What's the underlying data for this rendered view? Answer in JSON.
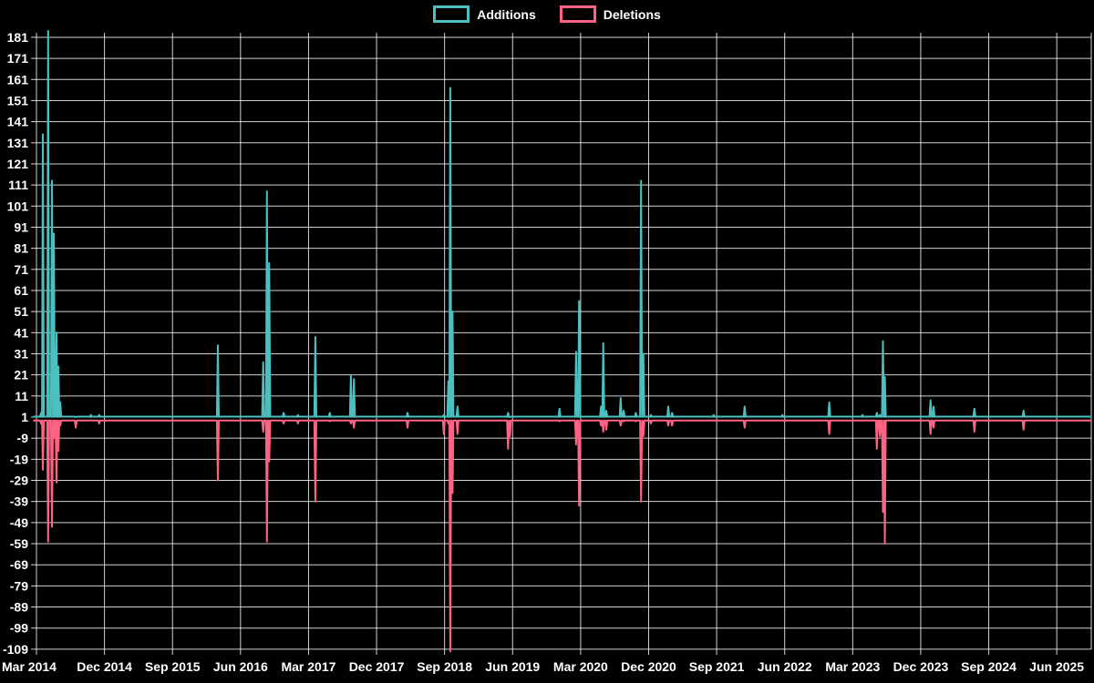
{
  "legend": {
    "additions_label": "Additions",
    "deletions_label": "Deletions"
  },
  "colors": {
    "additions": "#4bc0c0",
    "deletions": "#ff6384",
    "grid": "#ffffff",
    "text": "#ffffff",
    "background": "#000000"
  },
  "chart_data": {
    "type": "line",
    "title": "",
    "xlabel": "",
    "ylabel": "",
    "x_range": "Mar 2014 - Jun 2025",
    "ylim": [
      -109,
      181
    ],
    "grid": true,
    "legend_position": "top",
    "x_tick_labels": [
      "Mar 2014",
      "Dec 2014",
      "Sep 2015",
      "Jun 2016",
      "Mar 2017",
      "Dec 2017",
      "Sep 2018",
      "Jun 2019",
      "Mar 2020",
      "Dec 2020",
      "Sep 2021",
      "Jun 2022",
      "Mar 2023",
      "Dec 2023",
      "Sep 2024",
      "Jun 2025"
    ],
    "y_ticks": [
      181,
      171,
      161,
      151,
      141,
      131,
      121,
      111,
      101,
      91,
      81,
      71,
      61,
      51,
      41,
      31,
      21,
      11,
      1,
      -9,
      -19,
      -29,
      -39,
      -49,
      -59,
      -69,
      -79,
      -89,
      -99,
      -109
    ],
    "baseline_value": 0,
    "series": [
      {
        "name": "Additions",
        "color": "#4bc0c0"
      },
      {
        "name": "Deletions",
        "color": "#ff6384"
      }
    ],
    "spikes": [
      {
        "m": 0.6,
        "date": "2014-03",
        "additions": 3,
        "deletions": -2
      },
      {
        "m": 0.85,
        "date": "2014-04",
        "additions": 135,
        "deletions": -24
      },
      {
        "m": 1.55,
        "date": "2014-04",
        "additions": 184,
        "deletions": -58
      },
      {
        "m": 2.05,
        "date": "2014-05",
        "additions": 113,
        "deletions": -51
      },
      {
        "m": 2.3,
        "date": "2014-05",
        "additions": 88,
        "deletions": -9
      },
      {
        "m": 2.65,
        "date": "2014-05",
        "additions": 41,
        "deletions": -30
      },
      {
        "m": 2.9,
        "date": "2014-06",
        "additions": 25,
        "deletions": -15
      },
      {
        "m": 3.15,
        "date": "2014-06",
        "additions": 8,
        "deletions": -3
      },
      {
        "m": 5.2,
        "date": "2014-08",
        "additions": 1,
        "deletions": -4
      },
      {
        "m": 7.2,
        "date": "2014-10",
        "additions": 2,
        "deletions": 0
      },
      {
        "m": 8.3,
        "date": "2014-11",
        "additions": 2,
        "deletions": -2
      },
      {
        "m": 24.0,
        "date": "2016-03",
        "additions": 35,
        "deletions": -29
      },
      {
        "m": 30.0,
        "date": "2016-09",
        "additions": 27,
        "deletions": -6
      },
      {
        "m": 30.5,
        "date": "2016-09",
        "additions": 108,
        "deletions": -58
      },
      {
        "m": 30.8,
        "date": "2016-10",
        "additions": 74,
        "deletions": -20
      },
      {
        "m": 32.7,
        "date": "2016-11",
        "additions": 3,
        "deletions": -2
      },
      {
        "m": 34.6,
        "date": "2017-01",
        "additions": 2,
        "deletions": -2
      },
      {
        "m": 36.9,
        "date": "2017-04",
        "additions": 39,
        "deletions": -39
      },
      {
        "m": 38.8,
        "date": "2017-05",
        "additions": 3,
        "deletions": -1
      },
      {
        "m": 41.6,
        "date": "2017-08",
        "additions": 21,
        "deletions": -2
      },
      {
        "m": 42.0,
        "date": "2017-09",
        "additions": 19,
        "deletions": -4
      },
      {
        "m": 49.1,
        "date": "2018-04",
        "additions": 3,
        "deletions": -4
      },
      {
        "m": 53.9,
        "date": "2018-08",
        "additions": 2,
        "deletions": -7
      },
      {
        "m": 54.5,
        "date": "2018-09",
        "additions": 18,
        "deletions": -2
      },
      {
        "m": 54.75,
        "date": "2018-09",
        "additions": 157,
        "deletions": -110
      },
      {
        "m": 55.05,
        "date": "2018-10",
        "additions": 51,
        "deletions": -35
      },
      {
        "m": 55.7,
        "date": "2018-10",
        "additions": 6,
        "deletions": -7
      },
      {
        "m": 62.4,
        "date": "2019-05",
        "additions": 3,
        "deletions": -14
      },
      {
        "m": 62.65,
        "date": "2019-05",
        "additions": 1,
        "deletions": -8
      },
      {
        "m": 69.2,
        "date": "2019-12",
        "additions": 5,
        "deletions": -1
      },
      {
        "m": 71.4,
        "date": "2020-02",
        "additions": 32,
        "deletions": -12
      },
      {
        "m": 71.8,
        "date": "2020-02",
        "additions": 56,
        "deletions": -41
      },
      {
        "m": 74.7,
        "date": "2020-05",
        "additions": 6,
        "deletions": -3
      },
      {
        "m": 75.0,
        "date": "2020-06",
        "additions": 36,
        "deletions": -6
      },
      {
        "m": 75.4,
        "date": "2020-06",
        "additions": 4,
        "deletions": -5
      },
      {
        "m": 77.3,
        "date": "2020-08",
        "additions": 10,
        "deletions": -3
      },
      {
        "m": 77.7,
        "date": "2020-08",
        "additions": 4,
        "deletions": -1
      },
      {
        "m": 79.3,
        "date": "2020-10",
        "additions": 3,
        "deletions": -1
      },
      {
        "m": 80.0,
        "date": "2020-11",
        "additions": 113,
        "deletions": -39
      },
      {
        "m": 80.3,
        "date": "2020-11",
        "additions": 31,
        "deletions": -8
      },
      {
        "m": 81.3,
        "date": "2020-12",
        "additions": 2,
        "deletions": -2
      },
      {
        "m": 83.6,
        "date": "2021-02",
        "additions": 6,
        "deletions": -3
      },
      {
        "m": 84.1,
        "date": "2021-03",
        "additions": 3,
        "deletions": -3
      },
      {
        "m": 89.6,
        "date": "2021-08",
        "additions": 2,
        "deletions": 0
      },
      {
        "m": 93.7,
        "date": "2021-12",
        "additions": 6,
        "deletions": -4
      },
      {
        "m": 98.7,
        "date": "2022-05",
        "additions": 2,
        "deletions": 0
      },
      {
        "m": 104.9,
        "date": "2022-11",
        "additions": 8,
        "deletions": -7
      },
      {
        "m": 109.3,
        "date": "2023-04",
        "additions": 2,
        "deletions": 0
      },
      {
        "m": 111.2,
        "date": "2023-06",
        "additions": 3,
        "deletions": -14
      },
      {
        "m": 111.6,
        "date": "2023-06",
        "additions": 2,
        "deletions": -8
      },
      {
        "m": 112.0,
        "date": "2023-07",
        "additions": 37,
        "deletions": -44
      },
      {
        "m": 112.25,
        "date": "2023-07",
        "additions": 20,
        "deletions": -59
      },
      {
        "m": 118.3,
        "date": "2024-01",
        "additions": 9,
        "deletions": -7
      },
      {
        "m": 118.7,
        "date": "2024-01",
        "additions": 6,
        "deletions": -4
      },
      {
        "m": 124.1,
        "date": "2024-07",
        "additions": 5,
        "deletions": -6
      },
      {
        "m": 130.6,
        "date": "2025-01",
        "additions": 4,
        "deletions": -5
      }
    ]
  }
}
